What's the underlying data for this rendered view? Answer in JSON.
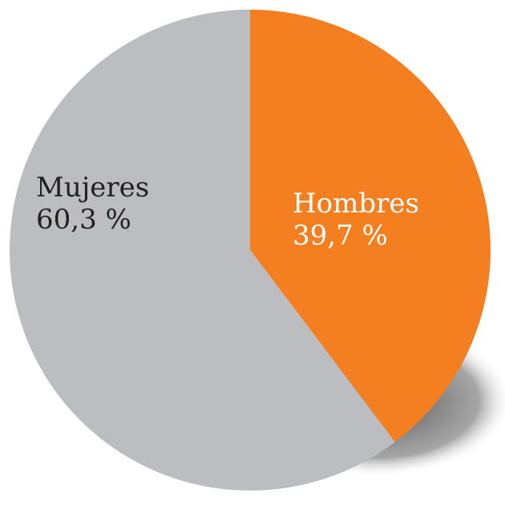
{
  "chart_data": {
    "type": "pie",
    "categories": [
      "Hombres",
      "Mujeres"
    ],
    "values": [
      39.7,
      60.3
    ],
    "value_labels": [
      "39,7 %",
      "60,3 %"
    ],
    "colors": [
      "#f47f20",
      "#bcbdc0"
    ],
    "label_colors": [
      "#ffffff",
      "#231f20"
    ]
  }
}
